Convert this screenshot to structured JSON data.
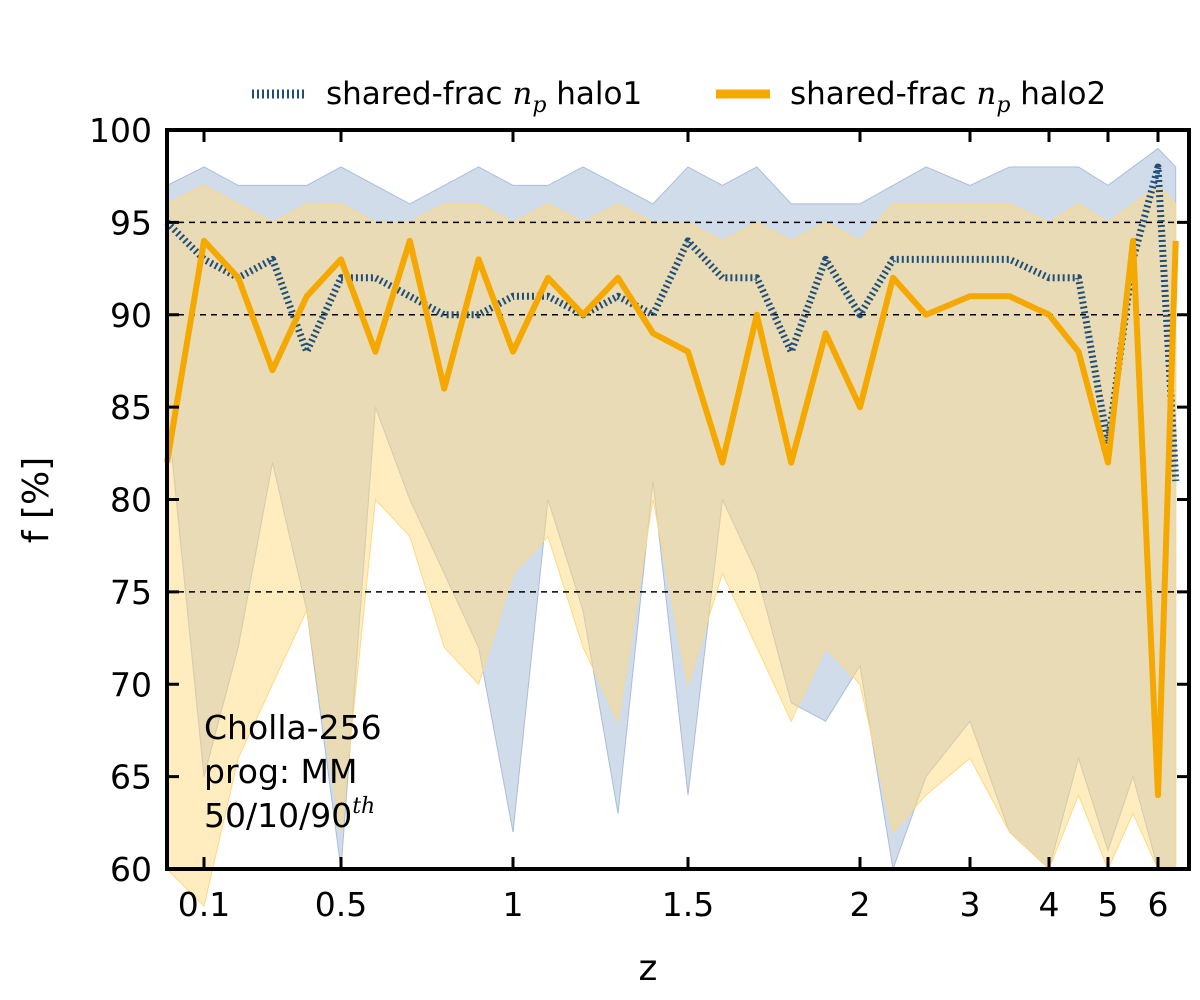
{
  "chart_data": {
    "type": "line",
    "xlabel": "z",
    "ylabel": "f [%]",
    "xlim": [
      0.0,
      6.7
    ],
    "ylim": [
      60,
      100
    ],
    "x_ticks": [
      {
        "label": "0.1",
        "value": 0.1
      },
      {
        "label": "0.5",
        "value": 0.5
      },
      {
        "label": "1",
        "value": 1
      },
      {
        "label": "1.5",
        "value": 1.5
      },
      {
        "label": "2",
        "value": 2
      },
      {
        "label": "3",
        "value": 3
      },
      {
        "label": "4",
        "value": 4
      },
      {
        "label": "5",
        "value": 5
      },
      {
        "label": "6",
        "value": 6
      }
    ],
    "y_ticks": [
      {
        "label": "60",
        "value": 60
      },
      {
        "label": "65",
        "value": 65
      },
      {
        "label": "70",
        "value": 70
      },
      {
        "label": "75",
        "value": 75
      },
      {
        "label": "80",
        "value": 80
      },
      {
        "label": "85",
        "value": 85
      },
      {
        "label": "90",
        "value": 90
      },
      {
        "label": "95",
        "value": 95
      },
      {
        "label": "100",
        "value": 100
      }
    ],
    "reference_lines": [
      75,
      90,
      95
    ],
    "grid": false,
    "legend_position": "top, above plot",
    "annotation": {
      "line1": "Cholla-256",
      "line2": "prog: MM",
      "line3_base": "50/10/90",
      "line3_sup": "th"
    },
    "colors": {
      "halo1": "#1f4e7a",
      "halo1_band": "#a9bfd8",
      "halo2": "#f5a800",
      "halo2_band": "#ffd980",
      "reference": "#000000"
    },
    "series": [
      {
        "name_prefix": "shared-frac ",
        "name_var": "n",
        "name_sub": "p",
        "name_suffix": " halo1",
        "style": "dotted",
        "x": [
          0.0,
          0.1,
          0.2,
          0.3,
          0.4,
          0.5,
          0.6,
          0.7,
          0.8,
          0.9,
          1.0,
          1.1,
          1.2,
          1.3,
          1.4,
          1.5,
          1.6,
          1.7,
          1.8,
          1.9,
          2.0,
          2.3,
          2.6,
          3.0,
          3.5,
          4.0,
          4.5,
          5.0,
          5.5,
          6.0,
          6.4
        ],
        "median": [
          95,
          93,
          92,
          93,
          88,
          92,
          92,
          91,
          90,
          90,
          91,
          91,
          90,
          91,
          90,
          94,
          92,
          92,
          88,
          93,
          90,
          93,
          93,
          93,
          93,
          92,
          92,
          83,
          93,
          98,
          81
        ],
        "p10": [
          85,
          65,
          72,
          82,
          74,
          60,
          85,
          80,
          76,
          72,
          62,
          80,
          74,
          63,
          81,
          64,
          80,
          76,
          69,
          68,
          71,
          60,
          65,
          68,
          62,
          60,
          66,
          61,
          65,
          60,
          60
        ],
        "p90": [
          97,
          98,
          97,
          97,
          97,
          98,
          97,
          96,
          97,
          98,
          97,
          97,
          98,
          97,
          96,
          98,
          97,
          98,
          96,
          96,
          96,
          97,
          98,
          97,
          98,
          98,
          98,
          97,
          98,
          99,
          98
        ]
      },
      {
        "name_prefix": "shared-frac ",
        "name_var": "n",
        "name_sub": "p",
        "name_suffix": " halo2",
        "style": "solid",
        "x": [
          0.0,
          0.1,
          0.2,
          0.3,
          0.4,
          0.5,
          0.6,
          0.7,
          0.8,
          0.9,
          1.0,
          1.1,
          1.2,
          1.3,
          1.4,
          1.5,
          1.6,
          1.7,
          1.8,
          1.9,
          2.0,
          2.3,
          2.6,
          3.0,
          3.5,
          4.0,
          4.5,
          5.0,
          5.5,
          6.0,
          6.4
        ],
        "median": [
          82,
          94,
          92,
          87,
          91,
          93,
          88,
          94,
          86,
          93,
          88,
          92,
          90,
          92,
          89,
          88,
          82,
          90,
          82,
          89,
          85,
          92,
          90,
          91,
          91,
          90,
          88,
          82,
          94,
          64,
          94
        ],
        "p10": [
          60,
          58,
          66,
          70,
          74,
          62,
          80,
          78,
          72,
          70,
          76,
          78,
          72,
          68,
          80,
          70,
          76,
          72,
          68,
          72,
          70,
          62,
          64,
          66,
          62,
          60,
          64,
          60,
          63,
          60,
          60
        ],
        "p90": [
          96,
          97,
          96,
          95,
          96,
          96,
          95,
          95,
          96,
          96,
          95,
          96,
          95,
          96,
          95,
          95,
          94,
          95,
          94,
          95,
          94,
          96,
          96,
          96,
          96,
          95,
          96,
          95,
          96,
          97,
          96
        ]
      }
    ]
  }
}
